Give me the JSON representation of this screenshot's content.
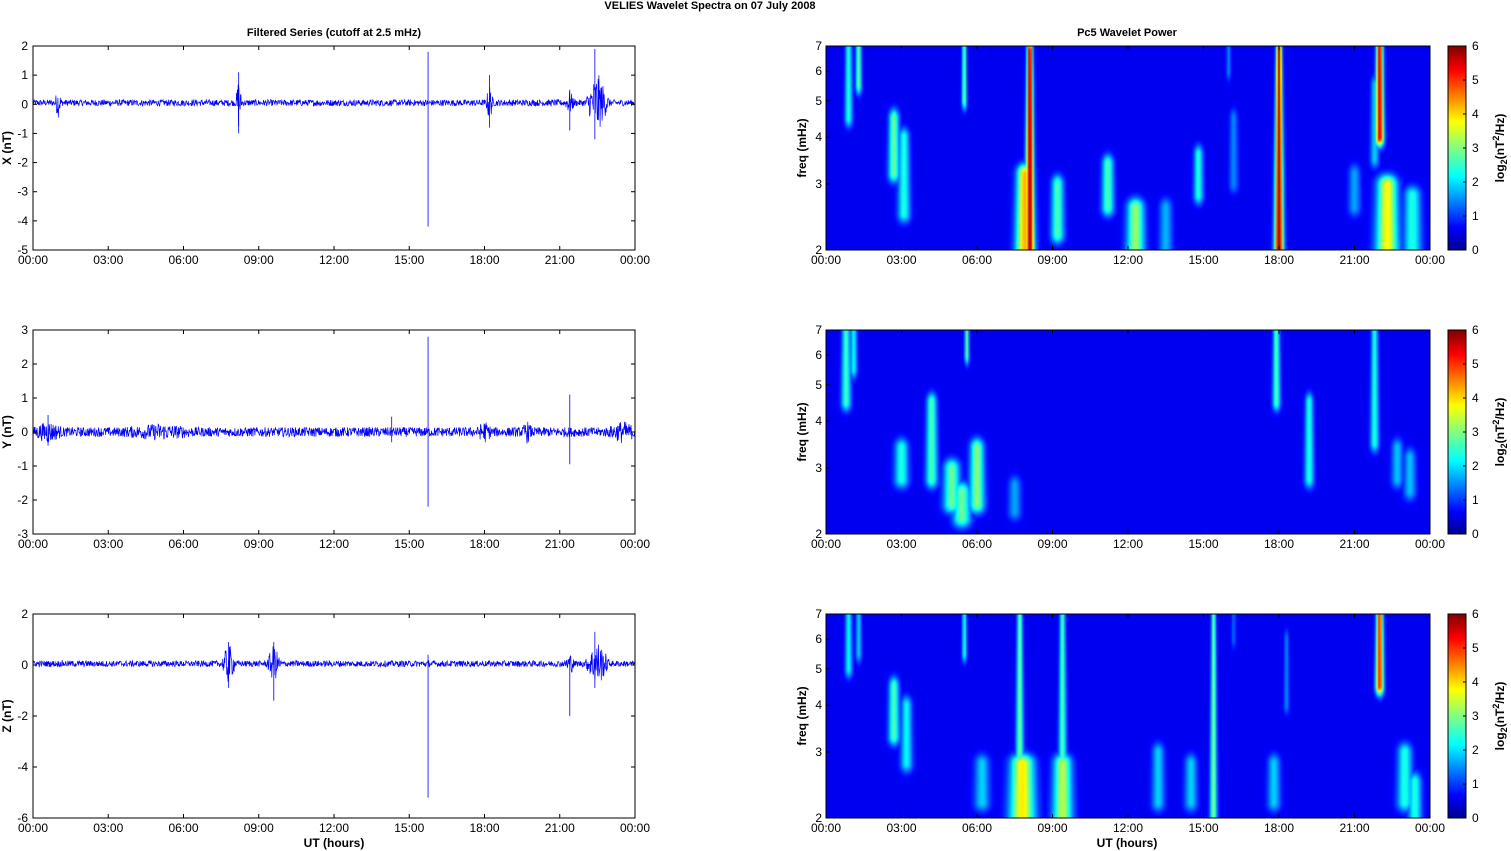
{
  "figure": {
    "title": "VELIES Wavelet Spectra on 07 July      2008",
    "left_column_title": "Filtered Series (cutoff at 2.5 mHz)",
    "right_column_title": "Pc5 Wavelet Power",
    "xlabel": "UT (hours)",
    "colorbar_label": "log2(nT2/Hz)",
    "spectra_ylabel": "freq (mHz)"
  },
  "chart_data": [
    {
      "type": "line",
      "panel": "X",
      "ylabel": "X (nT)",
      "xlim_hours": [
        0,
        24
      ],
      "ylim": [
        -5,
        2
      ],
      "x_ticks": [
        "00:00",
        "03:00",
        "06:00",
        "09:00",
        "12:00",
        "15:00",
        "18:00",
        "21:00",
        "00:00"
      ],
      "y_ticks": [
        "2",
        "1",
        "0",
        "-1",
        "-2",
        "-3",
        "-4",
        "-5"
      ],
      "y_tick_values": [
        2,
        1,
        0,
        -1,
        -2,
        -3,
        -4,
        -5
      ],
      "baseline": 0.05,
      "noise_amp": 0.11,
      "color": "#0000ff",
      "bursts": [
        [
          1.0,
          0.15,
          0.7
        ],
        [
          8.2,
          0.12,
          1.5
        ],
        [
          18.2,
          0.15,
          1.0
        ],
        [
          21.4,
          0.2,
          0.55
        ],
        [
          22.5,
          0.5,
          1.6
        ]
      ],
      "spikes": [
        [
          15.75,
          1.8,
          -4.2
        ],
        [
          8.2,
          1.1,
          -1.0
        ],
        [
          22.4,
          1.9,
          -1.2
        ],
        [
          18.2,
          1.0,
          -0.8
        ],
        [
          21.4,
          0.5,
          -0.9
        ]
      ]
    },
    {
      "type": "line",
      "panel": "Y",
      "ylabel": "Y (nT)",
      "xlim_hours": [
        0,
        24
      ],
      "ylim": [
        -3,
        3
      ],
      "x_ticks": [
        "00:00",
        "03:00",
        "06:00",
        "09:00",
        "12:00",
        "15:00",
        "18:00",
        "21:00",
        "00:00"
      ],
      "y_ticks": [
        "3",
        "2",
        "1",
        "0",
        "-1",
        "-2",
        "-3"
      ],
      "y_tick_values": [
        3,
        2,
        1,
        0,
        -1,
        -2,
        -3
      ],
      "baseline": 0.0,
      "noise_amp": 0.14,
      "color": "#0000ff",
      "bursts": [
        [
          0.6,
          0.6,
          0.35
        ],
        [
          5.0,
          1.5,
          0.2
        ],
        [
          18.0,
          0.3,
          0.35
        ],
        [
          19.7,
          0.2,
          0.35
        ],
        [
          23.5,
          0.6,
          0.35
        ]
      ],
      "spikes": [
        [
          15.75,
          2.8,
          -2.2
        ],
        [
          21.4,
          1.1,
          -0.95
        ],
        [
          0.6,
          0.5,
          -0.4
        ],
        [
          14.3,
          0.45,
          -0.3
        ]
      ]
    },
    {
      "type": "line",
      "panel": "Z",
      "ylabel": "Z (nT)",
      "xlim_hours": [
        0,
        24
      ],
      "ylim": [
        -6,
        2
      ],
      "x_ticks": [
        "00:00",
        "03:00",
        "06:00",
        "09:00",
        "12:00",
        "15:00",
        "18:00",
        "21:00",
        "00:00"
      ],
      "y_ticks": [
        "2",
        "0",
        "-2",
        "-4",
        "-6"
      ],
      "y_tick_values": [
        2,
        0,
        -2,
        -4,
        -6
      ],
      "baseline": 0.05,
      "noise_amp": 0.12,
      "color": "#0000ff",
      "bursts": [
        [
          7.8,
          0.3,
          1.2
        ],
        [
          9.6,
          0.3,
          1.1
        ],
        [
          22.5,
          0.5,
          1.4
        ],
        [
          21.4,
          0.2,
          0.6
        ]
      ],
      "spikes": [
        [
          15.75,
          0.4,
          -5.2
        ],
        [
          21.4,
          0.3,
          -2.0
        ],
        [
          9.6,
          0.9,
          -1.4
        ],
        [
          7.8,
          0.9,
          -0.9
        ],
        [
          22.4,
          1.3,
          -0.9
        ]
      ]
    },
    {
      "type": "heatmap",
      "panel": "X",
      "ylabel": "freq (mHz)",
      "xlim_hours": [
        0,
        24
      ],
      "freq_range_mhz": [
        2,
        7
      ],
      "freq_scale": "log",
      "x_ticks": [
        "00:00",
        "03:00",
        "06:00",
        "09:00",
        "12:00",
        "15:00",
        "18:00",
        "21:00",
        "00:00"
      ],
      "freq_ticks": [
        "7",
        "6",
        "5",
        "4",
        "3",
        "2"
      ],
      "freq_tick_values": [
        7,
        6,
        5,
        4,
        3,
        2
      ],
      "colorbar_range": [
        0,
        6
      ],
      "colorbar_ticks": [
        "6",
        "5",
        "4",
        "3",
        "2",
        "1",
        "0"
      ],
      "colormap": "jet",
      "features_hours_mhz_power": [
        [
          8.1,
          2.0,
          6.8,
          5.8,
          0.1
        ],
        [
          18.0,
          2.0,
          6.8,
          5.8,
          0.1
        ],
        [
          22.0,
          4.0,
          7.0,
          5.5,
          0.12
        ],
        [
          22.3,
          2.0,
          3.0,
          3.5,
          0.25
        ],
        [
          23.3,
          2.0,
          2.8,
          2.0,
          0.2
        ],
        [
          0.9,
          4.5,
          7.0,
          2.0,
          0.12
        ],
        [
          1.3,
          5.5,
          7.0,
          2.5,
          0.1
        ],
        [
          2.7,
          3.2,
          4.5,
          2.5,
          0.15
        ],
        [
          3.1,
          2.5,
          4.0,
          2.0,
          0.15
        ],
        [
          5.5,
          5.0,
          7.0,
          2.5,
          0.08
        ],
        [
          7.9,
          2.0,
          3.2,
          4.0,
          0.2
        ],
        [
          9.2,
          2.2,
          3.0,
          2.3,
          0.15
        ],
        [
          11.2,
          2.6,
          3.4,
          2.3,
          0.15
        ],
        [
          12.3,
          2.0,
          2.6,
          2.8,
          0.2
        ],
        [
          13.5,
          2.0,
          2.6,
          1.3,
          0.15
        ],
        [
          14.8,
          2.8,
          3.6,
          2.0,
          0.12
        ],
        [
          16.2,
          3.0,
          4.5,
          1.0,
          0.12
        ],
        [
          16.0,
          6.0,
          7.0,
          1.0,
          0.08
        ],
        [
          21.0,
          2.6,
          3.2,
          1.2,
          0.15
        ],
        [
          21.8,
          3.5,
          5.5,
          1.5,
          0.12
        ]
      ]
    },
    {
      "type": "heatmap",
      "panel": "Y",
      "ylabel": "freq (mHz)",
      "xlim_hours": [
        0,
        24
      ],
      "freq_range_mhz": [
        2,
        7
      ],
      "freq_scale": "log",
      "x_ticks": [
        "00:00",
        "03:00",
        "06:00",
        "09:00",
        "12:00",
        "15:00",
        "18:00",
        "21:00",
        "00:00"
      ],
      "freq_ticks": [
        "7",
        "6",
        "5",
        "4",
        "3",
        "2"
      ],
      "freq_tick_values": [
        7,
        6,
        5,
        4,
        3,
        2
      ],
      "colorbar_range": [
        0,
        6
      ],
      "colorbar_ticks": [
        "6",
        "5",
        "4",
        "3",
        "2",
        "1",
        "0"
      ],
      "colormap": "jet",
      "features_hours_mhz_power": [
        [
          0.8,
          4.5,
          7.0,
          2.2,
          0.15
        ],
        [
          1.1,
          5.5,
          7.0,
          1.8,
          0.12
        ],
        [
          3.0,
          2.8,
          3.4,
          2.0,
          0.18
        ],
        [
          4.2,
          2.8,
          4.5,
          2.3,
          0.15
        ],
        [
          5.0,
          2.4,
          3.0,
          2.5,
          0.2
        ],
        [
          5.4,
          2.2,
          2.6,
          2.5,
          0.2
        ],
        [
          6.0,
          2.4,
          3.4,
          2.7,
          0.18
        ],
        [
          5.6,
          6.0,
          7.0,
          2.5,
          0.08
        ],
        [
          7.5,
          2.3,
          2.7,
          1.2,
          0.15
        ],
        [
          17.9,
          4.5,
          7.0,
          2.3,
          0.12
        ],
        [
          19.2,
          2.8,
          4.5,
          2.0,
          0.12
        ],
        [
          21.8,
          3.5,
          7.0,
          2.0,
          0.12
        ],
        [
          22.7,
          2.8,
          3.4,
          1.4,
          0.15
        ],
        [
          23.2,
          2.6,
          3.2,
          1.4,
          0.15
        ]
      ]
    },
    {
      "type": "heatmap",
      "panel": "Z",
      "ylabel": "freq (mHz)",
      "xlim_hours": [
        0,
        24
      ],
      "freq_range_mhz": [
        2,
        7
      ],
      "freq_scale": "log",
      "x_ticks": [
        "00:00",
        "03:00",
        "06:00",
        "09:00",
        "12:00",
        "15:00",
        "18:00",
        "21:00",
        "00:00"
      ],
      "freq_ticks": [
        "7",
        "6",
        "5",
        "4",
        "3",
        "2"
      ],
      "freq_tick_values": [
        7,
        6,
        5,
        4,
        3,
        2
      ],
      "colorbar_range": [
        0,
        6
      ],
      "colorbar_ticks": [
        "6",
        "5",
        "4",
        "3",
        "2",
        "1",
        "0"
      ],
      "colormap": "jet",
      "features_hours_mhz_power": [
        [
          7.7,
          2.0,
          7.0,
          2.5,
          0.1
        ],
        [
          7.8,
          2.0,
          2.8,
          3.6,
          0.28
        ],
        [
          9.4,
          2.0,
          7.0,
          2.3,
          0.1
        ],
        [
          9.4,
          2.0,
          2.8,
          3.0,
          0.22
        ],
        [
          15.4,
          2.0,
          7.0,
          2.6,
          0.08
        ],
        [
          22.0,
          4.5,
          7.0,
          5.0,
          0.12
        ],
        [
          0.9,
          5.0,
          7.0,
          1.8,
          0.12
        ],
        [
          1.3,
          5.5,
          7.0,
          1.5,
          0.1
        ],
        [
          2.7,
          3.3,
          4.5,
          2.3,
          0.15
        ],
        [
          3.2,
          2.8,
          4.0,
          1.8,
          0.15
        ],
        [
          5.5,
          5.5,
          7.0,
          2.0,
          0.08
        ],
        [
          6.2,
          2.2,
          2.8,
          1.5,
          0.18
        ],
        [
          13.2,
          2.2,
          3.0,
          1.5,
          0.15
        ],
        [
          14.5,
          2.2,
          2.8,
          1.5,
          0.15
        ],
        [
          17.8,
          2.2,
          2.8,
          1.5,
          0.15
        ],
        [
          18.3,
          4.0,
          6.0,
          1.0,
          0.08
        ],
        [
          23.0,
          2.2,
          3.0,
          2.0,
          0.18
        ],
        [
          23.4,
          2.0,
          2.5,
          2.0,
          0.15
        ],
        [
          16.2,
          6.0,
          7.0,
          0.8,
          0.08
        ]
      ]
    }
  ]
}
